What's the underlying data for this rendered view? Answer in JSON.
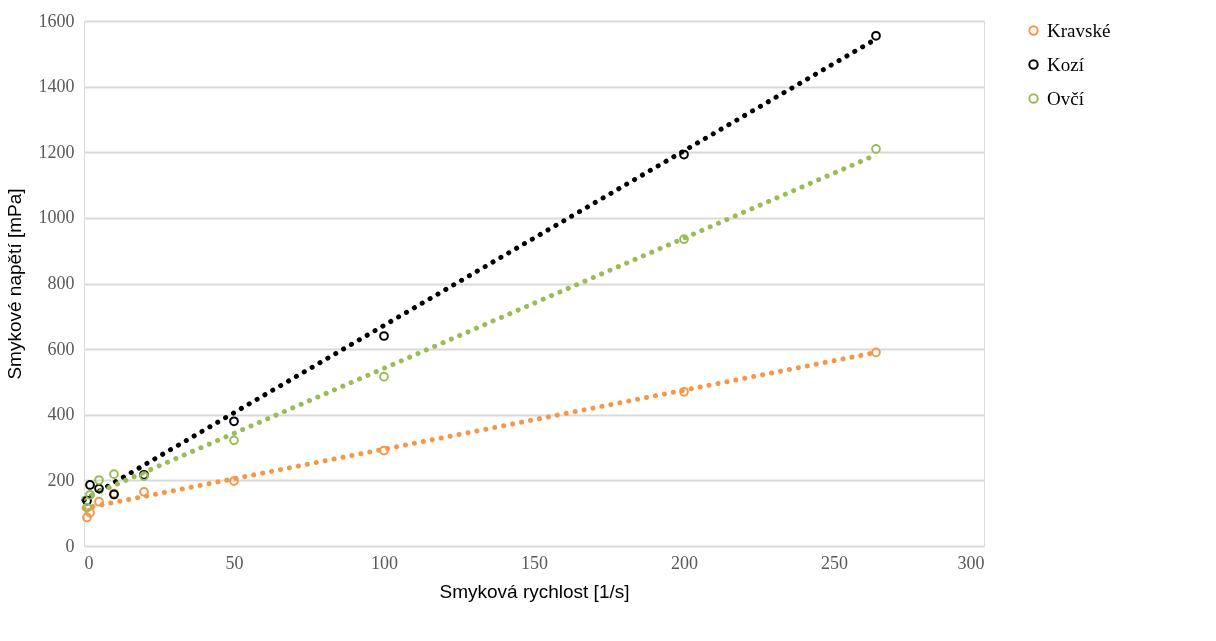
{
  "chart_data": {
    "type": "scatter",
    "xlabel": "Smyková rychlost [1/s]",
    "ylabel": "Smykové napětí [mPa]",
    "xlim": [
      0,
      300
    ],
    "xticks": [
      0,
      50,
      100,
      150,
      200,
      250,
      300
    ],
    "ylim": [
      0,
      1600
    ],
    "yticks": [
      0,
      200,
      400,
      600,
      800,
      1000,
      1200,
      1400,
      1600
    ],
    "grid": "y",
    "legend": "right",
    "series": [
      {
        "name": "Kravské",
        "marker": "circle",
        "color": "#f79646",
        "x": [
          1,
          2,
          5,
          10,
          20,
          50,
          100,
          200,
          264
        ],
        "values": [
          87,
          102,
          135,
          160,
          165,
          198,
          291,
          470,
          590
        ]
      },
      {
        "name": "Kozí",
        "marker": "circle",
        "color": "#000000",
        "x": [
          1,
          2,
          5,
          10,
          20,
          50,
          100,
          200,
          264
        ],
        "values": [
          138,
          186,
          175,
          157,
          217,
          380,
          640,
          1193,
          1555
        ]
      },
      {
        "name": "Ovčí",
        "marker": "circle",
        "color": "#9bbb59",
        "x": [
          1,
          2,
          5,
          10,
          20,
          50,
          100,
          200,
          264
        ],
        "values": [
          117,
          156,
          201,
          219,
          213,
          322,
          516,
          935,
          1210
        ]
      },
      {
        "type": "line",
        "line_style": "dotted",
        "marker": "none",
        "color": "#f79646",
        "x": [
          0,
          264
        ],
        "values": [
          115,
          590
        ]
      },
      {
        "type": "line",
        "line_style": "dotted",
        "marker": "none",
        "color": "#000000",
        "x": [
          0,
          264
        ],
        "values": [
          140,
          1545
        ]
      },
      {
        "type": "line",
        "line_style": "dotted",
        "marker": "none",
        "color": "#9bbb59",
        "x": [
          0,
          264
        ],
        "values": [
          145,
          1192
        ]
      }
    ]
  }
}
